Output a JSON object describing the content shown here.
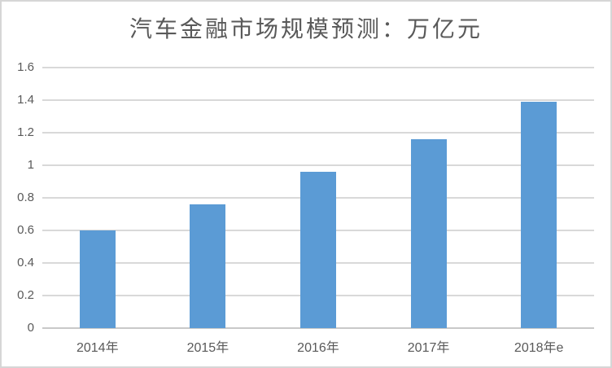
{
  "chart_data": {
    "type": "bar",
    "title": "汽车金融市场规模预测：万亿元",
    "categories": [
      "2014年",
      "2015年",
      "2016年",
      "2017年",
      "2018年e"
    ],
    "values": [
      0.6,
      0.76,
      0.96,
      1.16,
      1.39
    ],
    "xlabel": "",
    "ylabel": "",
    "ylim": [
      0,
      1.6
    ],
    "ytick_step": 0.2,
    "ytick_labels": [
      "0",
      "0.2",
      "0.4",
      "0.6",
      "0.8",
      "1",
      "1.2",
      "1.4",
      "1.6"
    ],
    "legend": "none",
    "grid": "horizontal",
    "colors": {
      "bar": "#5B9BD5",
      "gridline": "#D9D9D9",
      "axis_line": "#C9C9C9",
      "text": "#595959",
      "frame_border": "#D6D6D6",
      "background": "#FFFFFF"
    }
  }
}
